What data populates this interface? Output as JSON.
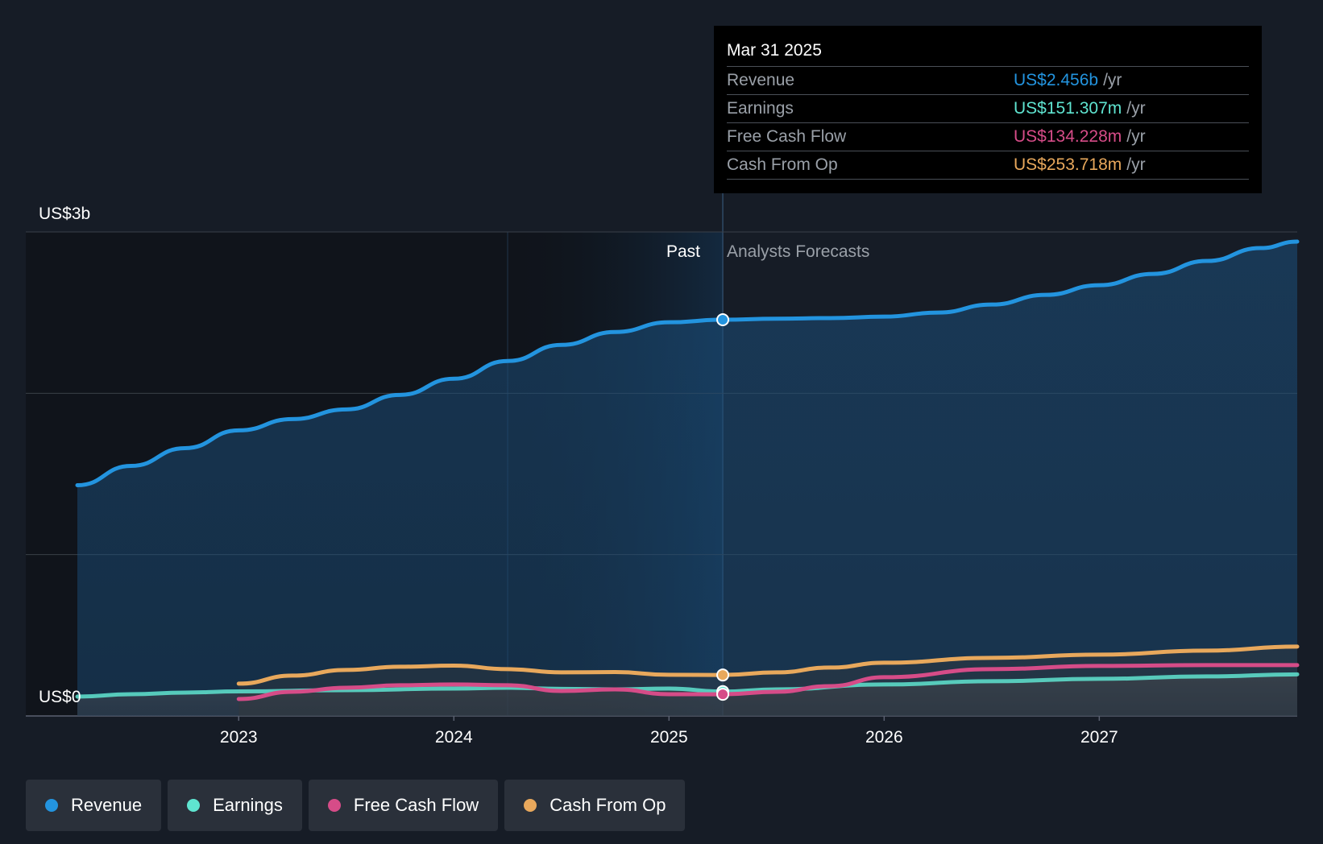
{
  "chart_data": {
    "type": "area",
    "y_unit_labels": {
      "top": "US$3b",
      "bottom": "US$0"
    },
    "ylim": [
      0,
      3000
    ],
    "xlim": [
      2022.25,
      2027.92
    ],
    "x_ticks": [
      {
        "value": 2023,
        "label": "2023"
      },
      {
        "value": 2024,
        "label": "2024"
      },
      {
        "value": 2025,
        "label": "2025"
      },
      {
        "value": 2026,
        "label": "2026"
      },
      {
        "value": 2027,
        "label": "2027"
      }
    ],
    "past_label": "Past",
    "forecast_label": "Analysts Forecasts",
    "divider_x": 2025.25,
    "highlight_start_x": 2024.25,
    "grid": true,
    "series": [
      {
        "name": "Revenue",
        "color": "#2394df",
        "fill": true,
        "points": [
          [
            2022.25,
            1430
          ],
          [
            2022.5,
            1550
          ],
          [
            2022.75,
            1660
          ],
          [
            2023.0,
            1770
          ],
          [
            2023.25,
            1840
          ],
          [
            2023.5,
            1900
          ],
          [
            2023.75,
            1990
          ],
          [
            2024.0,
            2090
          ],
          [
            2024.25,
            2200
          ],
          [
            2024.5,
            2300
          ],
          [
            2024.75,
            2380
          ],
          [
            2025.0,
            2440
          ],
          [
            2025.25,
            2456
          ],
          [
            2025.5,
            2462
          ],
          [
            2025.75,
            2466
          ],
          [
            2026.0,
            2475
          ],
          [
            2026.25,
            2500
          ],
          [
            2026.5,
            2550
          ],
          [
            2026.75,
            2610
          ],
          [
            2027.0,
            2670
          ],
          [
            2027.25,
            2740
          ],
          [
            2027.5,
            2820
          ],
          [
            2027.75,
            2900
          ],
          [
            2027.92,
            2940
          ]
        ]
      },
      {
        "name": "Earnings",
        "color": "#5fe4d0",
        "fill": false,
        "points": [
          [
            2022.25,
            120
          ],
          [
            2022.5,
            135
          ],
          [
            2022.75,
            145
          ],
          [
            2023.0,
            152
          ],
          [
            2023.5,
            160
          ],
          [
            2024.0,
            170
          ],
          [
            2024.25,
            175
          ],
          [
            2024.5,
            168
          ],
          [
            2024.75,
            165
          ],
          [
            2025.0,
            170
          ],
          [
            2025.25,
            151.307
          ],
          [
            2025.5,
            165
          ],
          [
            2026.0,
            195
          ],
          [
            2026.5,
            215
          ],
          [
            2027.0,
            230
          ],
          [
            2027.5,
            245
          ],
          [
            2027.92,
            258
          ]
        ]
      },
      {
        "name": "Free Cash Flow",
        "color": "#d64c88",
        "fill": false,
        "points": [
          [
            2023.0,
            105
          ],
          [
            2023.25,
            150
          ],
          [
            2023.5,
            175
          ],
          [
            2023.75,
            190
          ],
          [
            2024.0,
            195
          ],
          [
            2024.25,
            190
          ],
          [
            2024.5,
            155
          ],
          [
            2024.75,
            165
          ],
          [
            2025.0,
            135
          ],
          [
            2025.25,
            134.228
          ],
          [
            2025.5,
            150
          ],
          [
            2025.75,
            185
          ],
          [
            2026.0,
            240
          ],
          [
            2026.5,
            290
          ],
          [
            2027.0,
            310
          ],
          [
            2027.5,
            315
          ],
          [
            2027.92,
            315
          ]
        ]
      },
      {
        "name": "Cash From Op",
        "color": "#e8a85c",
        "fill": false,
        "points": [
          [
            2023.0,
            200
          ],
          [
            2023.25,
            250
          ],
          [
            2023.5,
            285
          ],
          [
            2023.75,
            305
          ],
          [
            2024.0,
            312
          ],
          [
            2024.25,
            290
          ],
          [
            2024.5,
            270
          ],
          [
            2024.75,
            272
          ],
          [
            2025.0,
            255
          ],
          [
            2025.25,
            253.718
          ],
          [
            2025.5,
            270
          ],
          [
            2025.75,
            300
          ],
          [
            2026.0,
            330
          ],
          [
            2026.5,
            360
          ],
          [
            2027.0,
            380
          ],
          [
            2027.5,
            405
          ],
          [
            2027.92,
            430
          ]
        ]
      }
    ]
  },
  "tooltip": {
    "date": "Mar 31 2025",
    "rows": [
      {
        "label": "Revenue",
        "value": "US$2.456b",
        "unit": "/yr",
        "color": "#2394df"
      },
      {
        "label": "Earnings",
        "value": "US$151.307m",
        "unit": "/yr",
        "color": "#5fe4d0"
      },
      {
        "label": "Free Cash Flow",
        "value": "US$134.228m",
        "unit": "/yr",
        "color": "#d64c88"
      },
      {
        "label": "Cash From Op",
        "value": "US$253.718m",
        "unit": "/yr",
        "color": "#e8a85c"
      }
    ]
  },
  "legend": [
    {
      "label": "Revenue",
      "color": "#2394df"
    },
    {
      "label": "Earnings",
      "color": "#5fe4d0"
    },
    {
      "label": "Free Cash Flow",
      "color": "#d64c88"
    },
    {
      "label": "Cash From Op",
      "color": "#e8a85c"
    }
  ]
}
